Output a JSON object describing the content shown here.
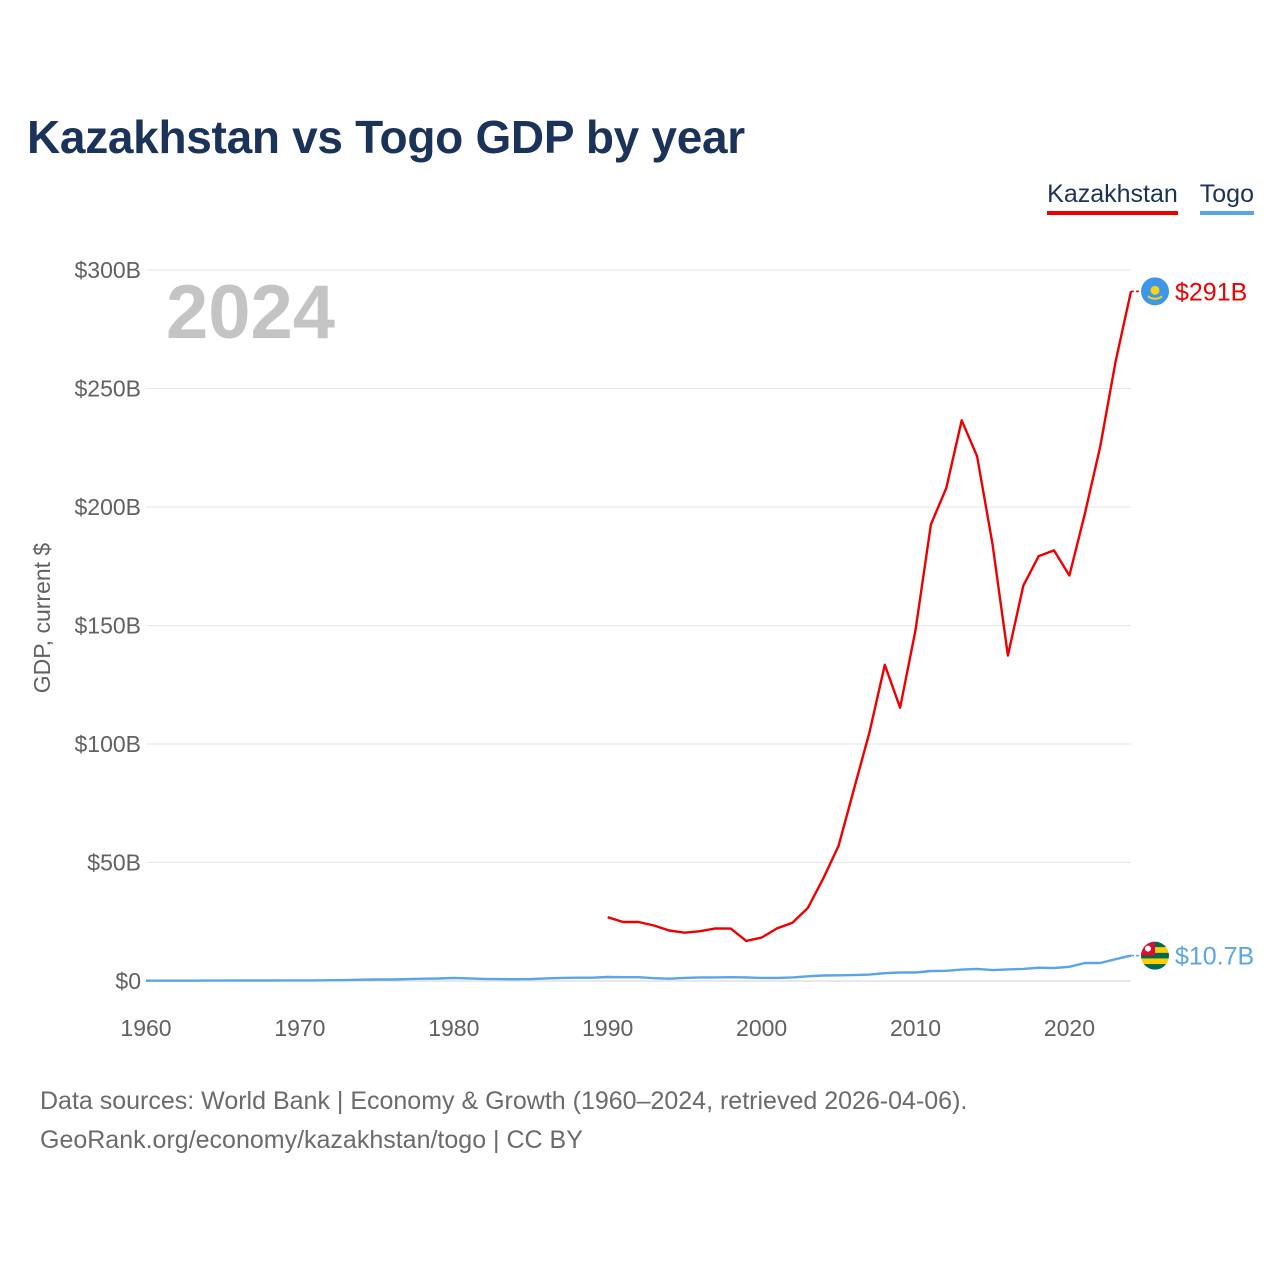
{
  "title": "Kazakhstan vs Togo GDP by year",
  "legend": {
    "kazakhstan": "Kazakhstan",
    "togo": "Togo"
  },
  "chart_data": {
    "type": "line",
    "title": "Kazakhstan vs Togo GDP by year",
    "ylabel": "GDP, current $",
    "xlabel": "",
    "xlim": [
      1960,
      2024
    ],
    "ylim": [
      0,
      300
    ],
    "unit": "billion current US$",
    "watermark_year": "2024",
    "x_ticks": [
      1960,
      1970,
      1980,
      1990,
      2000,
      2010,
      2020
    ],
    "x_tick_labels": [
      "1960",
      "1970",
      "1980",
      "1990",
      "2000",
      "2010",
      "2020"
    ],
    "y_ticks": [
      0,
      50,
      100,
      150,
      200,
      250,
      300
    ],
    "y_tick_labels": [
      "$0",
      "$50B",
      "$100B",
      "$150B",
      "$200B",
      "$250B",
      "$300B"
    ],
    "grid": true,
    "series": [
      {
        "name": "Kazakhstan",
        "color": "#ee0000",
        "end_label": "$291B",
        "x": [
          1990,
          1991,
          1992,
          1993,
          1994,
          1995,
          1996,
          1997,
          1998,
          1999,
          2000,
          2001,
          2002,
          2003,
          2004,
          2005,
          2006,
          2007,
          2008,
          2009,
          2010,
          2011,
          2012,
          2013,
          2014,
          2015,
          2016,
          2017,
          2018,
          2019,
          2020,
          2021,
          2022,
          2023,
          2024
        ],
        "values": [
          26.9,
          24.9,
          24.9,
          23.4,
          21.3,
          20.4,
          21.0,
          22.2,
          22.1,
          16.9,
          18.3,
          22.2,
          24.6,
          30.8,
          43.2,
          57.1,
          81.0,
          104.8,
          133.4,
          115.3,
          148.0,
          192.6,
          208.0,
          236.6,
          221.4,
          184.4,
          137.3,
          166.8,
          179.3,
          181.7,
          171.1,
          197.1,
          225.5,
          261.4,
          291.0
        ]
      },
      {
        "name": "Togo",
        "color": "#5aa5e8",
        "end_label": "$10.7B",
        "x": [
          1960,
          1961,
          1962,
          1963,
          1964,
          1965,
          1966,
          1967,
          1968,
          1969,
          1970,
          1971,
          1972,
          1973,
          1974,
          1975,
          1976,
          1977,
          1978,
          1979,
          1980,
          1981,
          1982,
          1983,
          1984,
          1985,
          1986,
          1987,
          1988,
          1989,
          1990,
          1991,
          1992,
          1993,
          1994,
          1995,
          1996,
          1997,
          1998,
          1999,
          2000,
          2001,
          2002,
          2003,
          2004,
          2005,
          2006,
          2007,
          2008,
          2009,
          2010,
          2011,
          2012,
          2013,
          2014,
          2015,
          2016,
          2017,
          2018,
          2019,
          2020,
          2021,
          2022,
          2023,
          2024
        ],
        "values": [
          0.12,
          0.12,
          0.13,
          0.14,
          0.15,
          0.17,
          0.19,
          0.2,
          0.21,
          0.24,
          0.25,
          0.26,
          0.32,
          0.36,
          0.53,
          0.62,
          0.62,
          0.79,
          0.95,
          1.04,
          1.3,
          1.1,
          0.9,
          0.8,
          0.75,
          0.8,
          1.1,
          1.3,
          1.4,
          1.4,
          1.7,
          1.6,
          1.6,
          1.2,
          0.97,
          1.3,
          1.5,
          1.5,
          1.6,
          1.5,
          1.3,
          1.3,
          1.5,
          2.0,
          2.3,
          2.4,
          2.5,
          2.7,
          3.3,
          3.6,
          3.6,
          4.2,
          4.3,
          4.8,
          5.1,
          4.6,
          4.9,
          5.1,
          5.6,
          5.5,
          6.0,
          7.6,
          7.6,
          9.2,
          10.7
        ]
      }
    ]
  },
  "footer": {
    "line1": "Data sources: World Bank | Economy & Growth (1960–2024, retrieved 2026-04-06).",
    "line2": "GeoRank.org/economy/kazakhstan/togo | CC BY"
  }
}
